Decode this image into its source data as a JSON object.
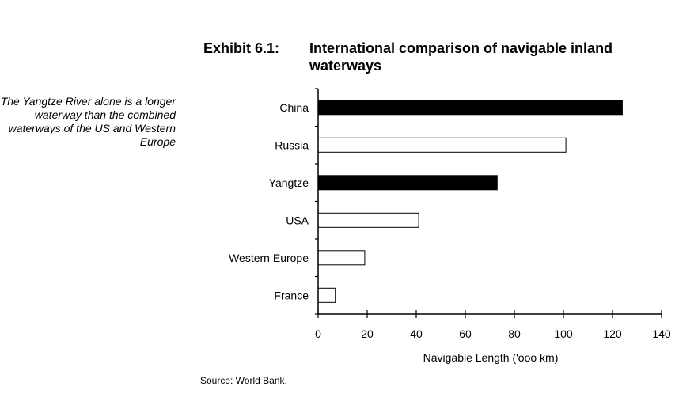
{
  "exhibit_label": "Exhibit 6.1:",
  "side_note": "The Yangtze River alone is a longer waterway than the combined waterways of the US and Western Europe",
  "source": "Source: World Bank.",
  "chart_data": {
    "type": "bar",
    "orientation": "horizontal",
    "title": "International comparison of navigable inland waterways",
    "xlabel": "Navigable Length ('ooo km)",
    "ylabel": "",
    "categories": [
      "China",
      "Russia",
      "Yangtze",
      "USA",
      "Western Europe",
      "France"
    ],
    "values": [
      124,
      101,
      73,
      41,
      19,
      7
    ],
    "bar_fills": [
      "#000000",
      "#ffffff",
      "#000000",
      "#ffffff",
      "#ffffff",
      "#ffffff"
    ],
    "xlim": [
      0,
      140
    ],
    "xticks": [
      0,
      20,
      40,
      60,
      80,
      100,
      120,
      140
    ],
    "grid": false,
    "legend": "none"
  }
}
